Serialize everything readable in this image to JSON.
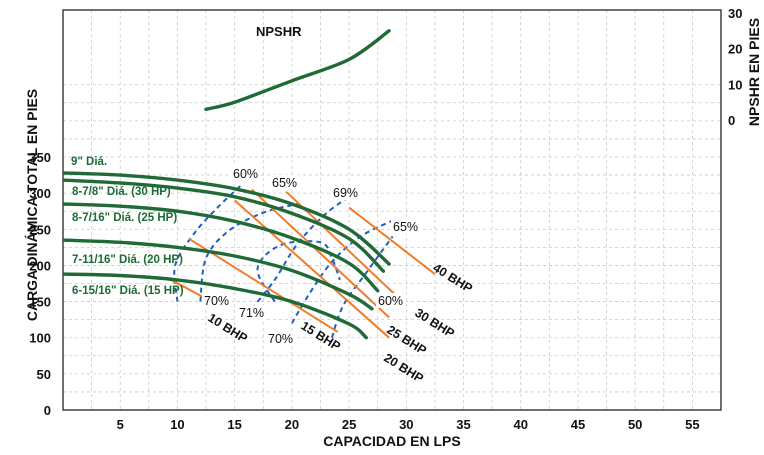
{
  "chart_data": {
    "type": "line",
    "title": "",
    "xlabel": "CAPACIDAD EN LPS",
    "ylabel": "CARGA DINÁMICA TOTAL EN PIES",
    "y2label": "NPSHR EN PIES",
    "xlim": [
      0,
      57.5
    ],
    "ylim": [
      0,
      350
    ],
    "y2lim": [
      0,
      30
    ],
    "grid": true,
    "x_ticks": [
      "5",
      "10",
      "15",
      "20",
      "25",
      "30",
      "35",
      "40",
      "45",
      "50",
      "55"
    ],
    "y_ticks": [
      "0",
      "50",
      "100",
      "150",
      "200",
      "250",
      "300",
      "350"
    ],
    "y2_ticks": [
      "0",
      "10",
      "20",
      "30"
    ],
    "head_curves": [
      {
        "name": "9\" Diá.",
        "x": [
          0,
          5,
          10,
          15,
          20,
          25,
          28.5
        ],
        "y": [
          328,
          325,
          318,
          306,
          285,
          250,
          202
        ]
      },
      {
        "name": "8-7/8\" Diá. (30 HP)",
        "x": [
          0,
          5,
          10,
          15,
          20,
          25,
          28
        ],
        "y": [
          318,
          314,
          307,
          295,
          272,
          237,
          192
        ]
      },
      {
        "name": "8-7/16\" Diá. (25 HP)",
        "x": [
          0,
          5,
          10,
          15,
          20,
          25,
          27.5
        ],
        "y": [
          285,
          282,
          275,
          261,
          238,
          203,
          165
        ]
      },
      {
        "name": "7-11/16\" Diá. (20 HP)",
        "x": [
          0,
          5,
          10,
          15,
          20,
          25,
          27
        ],
        "y": [
          235,
          232,
          225,
          213,
          193,
          160,
          140
        ]
      },
      {
        "name": "6-15/16\" Diá. (15 HP)",
        "x": [
          0,
          5,
          10,
          15,
          20,
          25,
          26.5
        ],
        "y": [
          188,
          186,
          180,
          168,
          150,
          119,
          100
        ]
      }
    ],
    "npshr": {
      "name": "NPSHR",
      "x": [
        12.5,
        15,
        20,
        25,
        28.5
      ],
      "y": [
        3,
        5,
        11,
        17,
        25
      ]
    },
    "bhp_lines": [
      {
        "name": "10 BHP",
        "x": [
          9.2,
          13
        ],
        "y": [
          182,
          150
        ]
      },
      {
        "name": "15 BHP",
        "x": [
          11,
          24
        ],
        "y": [
          237,
          108
        ]
      },
      {
        "name": "20 BHP",
        "x": [
          15,
          28.5
        ],
        "y": [
          290,
          100
        ]
      },
      {
        "name": "25 BHP",
        "x": [
          16.5,
          28.5
        ],
        "y": [
          305,
          128
        ]
      },
      {
        "name": "30 BHP",
        "x": [
          19.5,
          29
        ],
        "y": [
          302,
          160
        ]
      },
      {
        "name": "40 BHP",
        "x": [
          25,
          32.5
        ],
        "y": [
          280,
          188
        ]
      }
    ],
    "efficiency_contours": [
      "60%",
      "65%",
      "69%",
      "65%",
      "70%",
      "71%",
      "70%",
      "60%"
    ]
  }
}
